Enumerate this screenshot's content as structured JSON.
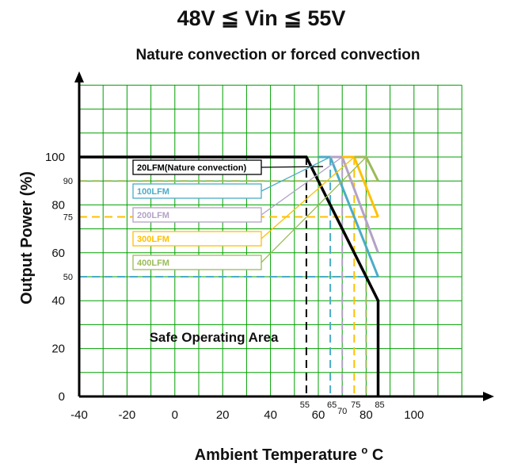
{
  "chart_data": {
    "type": "line",
    "title": "48V ≦ Vin ≦ 55V",
    "subtitle": "Nature convection or forced convection",
    "xlabel": "Ambient Temperature ",
    "xlabel_sup": "o",
    "xlabel_unit": " C",
    "ylabel": "Output Power (%)",
    "xlim": [
      -40,
      120
    ],
    "ylim": [
      0,
      130
    ],
    "grid": true,
    "x_ticks": [
      -40,
      -20,
      0,
      20,
      40,
      60,
      80,
      100
    ],
    "x_tick_labels": [
      "-40",
      "-20",
      "0",
      "20",
      "40",
      "60",
      "80",
      "100"
    ],
    "y_ticks": [
      0,
      20,
      40,
      60,
      80,
      100
    ],
    "y_tick_labels": [
      "0",
      "20",
      "40",
      "60",
      "80",
      "100"
    ],
    "extra_y_ticks": [
      90,
      75,
      50
    ],
    "extra_y_tick_labels": [
      "90",
      "75",
      "50"
    ],
    "extra_x_ticks": [
      55,
      65,
      70,
      75,
      85
    ],
    "extra_x_tick_labels": [
      "55",
      "65",
      "70",
      "75",
      "85"
    ],
    "series": [
      {
        "name": "20LFM(Nature convection)",
        "color": "#000000",
        "points": [
          [
            -40,
            100
          ],
          [
            55,
            100
          ],
          [
            85,
            40
          ],
          [
            85,
            0
          ]
        ]
      },
      {
        "name": "100LFM",
        "color": "#4bacc6",
        "points": [
          [
            60,
            100
          ],
          [
            65,
            100
          ],
          [
            85,
            50
          ]
        ]
      },
      {
        "name": "200LFM",
        "color": "#b3a2c7",
        "points": [
          [
            65,
            100
          ],
          [
            70,
            100
          ],
          [
            85,
            60
          ]
        ]
      },
      {
        "name": "300LFM",
        "color": "#ffc000",
        "points": [
          [
            70,
            100
          ],
          [
            75,
            100
          ],
          [
            85,
            75
          ]
        ]
      },
      {
        "name": "400LFM",
        "color": "#9bbb59",
        "points": [
          [
            75,
            100
          ],
          [
            80,
            100
          ],
          [
            85,
            90
          ]
        ]
      }
    ],
    "reference_lines": [
      {
        "axis": "x",
        "value": 55,
        "color": "#000000"
      },
      {
        "axis": "x",
        "value": 65,
        "color": "#4bacc6"
      },
      {
        "axis": "x",
        "value": 70,
        "color": "#b3a2c7"
      },
      {
        "axis": "x",
        "value": 75,
        "color": "#ffc000"
      },
      {
        "axis": "x",
        "value": 80,
        "color": "#9bbb59"
      },
      {
        "axis": "y",
        "value": 90,
        "color": "#9bbb59"
      },
      {
        "axis": "y",
        "value": 75,
        "color": "#ffc000"
      },
      {
        "axis": "y",
        "value": 50,
        "color": "#4bacc6"
      }
    ],
    "annotation": "Safe Operating Area",
    "grid_color": "#00a000",
    "axis_color": "#000000"
  }
}
